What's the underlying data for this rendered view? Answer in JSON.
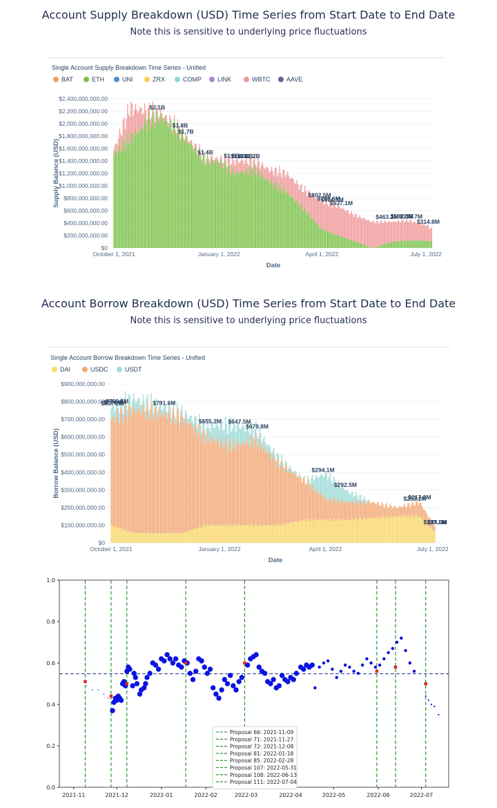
{
  "supply_section": {
    "title": "Account Supply Breakdown (USD) Time Series from Start Date to End Date",
    "subtitle": "Note this is sensitive to underlying price fluctuations"
  },
  "borrow_section": {
    "title": "Account Borrow Breakdown (USD) Time Series from Start Date to End Date",
    "subtitle": "Note this is sensitive to underlying price fluctuations"
  },
  "colors": {
    "BAT": "#ec9f6f",
    "ETH": "#7dc24a",
    "UNI": "#4a8fd6",
    "ZRX": "#f7cf5a",
    "COMP": "#8ed7d3",
    "LINK": "#a58ccb",
    "WBTC": "#ef9a9a",
    "AAVE": "#6f6198",
    "DAI": "#f9d86a",
    "USDC": "#f2a977",
    "USDT": "#9fdbd7"
  },
  "chart_data": [
    {
      "type": "bar",
      "stacked": true,
      "title": "Single Account Supply Breakdown Time Series - Unified",
      "xlabel": "Date",
      "ylabel": "Supply Balance (USD)",
      "legend": [
        "BAT",
        "ETH",
        "UNI",
        "ZRX",
        "COMP",
        "LINK",
        "WBTC",
        "AAVE"
      ],
      "legend_position": "top-left",
      "x_ticks": [
        "October 1, 2021",
        "January 1, 2022",
        "April 1, 2022",
        "July 1, 2022"
      ],
      "y_ticks": [
        "$0",
        "$200,000,000.00",
        "$400,000,000.00",
        "$600,000,000.00",
        "$800,000,000.00",
        "$1,000,000,000.00",
        "$1,200,000,000.00",
        "$1,400,000,000.00",
        "$1,600,000,000.00",
        "$1,800,000,000.00",
        "$2,000,000,000.00",
        "$2,200,000,000.00",
        "$2,400,000,000.00"
      ],
      "ylim": [
        0,
        2400000000
      ],
      "xlim": [
        "2021-09-28",
        "2022-07-10"
      ],
      "series": [
        {
          "name": "ETH",
          "x": [
            "2021-10-01",
            "2021-10-15",
            "2021-11-01",
            "2021-11-10",
            "2021-11-25",
            "2021-12-05",
            "2021-12-20",
            "2022-01-01",
            "2022-01-15",
            "2022-02-01",
            "2022-02-15",
            "2022-03-01",
            "2022-03-15",
            "2022-04-01",
            "2022-04-15",
            "2022-05-01",
            "2022-05-15",
            "2022-06-01",
            "2022-06-15",
            "2022-07-01",
            "2022-07-06"
          ],
          "values": [
            1500000000,
            1750000000,
            2050000000,
            2100000000,
            1900000000,
            1700000000,
            1400000000,
            1380000000,
            1200000000,
            1250000000,
            1050000000,
            900000000,
            650000000,
            300000000,
            200000000,
            100000000,
            0,
            100000000,
            120000000,
            120000000,
            100000000
          ]
        },
        {
          "name": "WBTC",
          "x": [
            "2021-10-01",
            "2021-10-15",
            "2021-11-01",
            "2021-11-10",
            "2021-11-25",
            "2021-12-05",
            "2021-12-20",
            "2022-01-01",
            "2022-01-15",
            "2022-02-01",
            "2022-02-15",
            "2022-03-01",
            "2022-03-15",
            "2022-04-01",
            "2022-04-15",
            "2022-05-01",
            "2022-05-15",
            "2022-06-01",
            "2022-06-15",
            "2022-07-01",
            "2022-07-06"
          ],
          "values": [
            80000000,
            500000000,
            150000000,
            80000000,
            60000000,
            50000000,
            60000000,
            50000000,
            200000000,
            150000000,
            200000000,
            300000000,
            300000000,
            450000000,
            470000000,
            420000000,
            420000000,
            320000000,
            320000000,
            250000000,
            210000000
          ]
        }
      ],
      "annotations": [
        {
          "x": "2021-11-08",
          "label": "$2.1B"
        },
        {
          "x": "2021-11-28",
          "label": "$1.8B"
        },
        {
          "x": "2021-12-03",
          "label": "$1.7B"
        },
        {
          "x": "2021-12-20",
          "label": "$1.4B"
        },
        {
          "x": "2022-01-12",
          "label": "$1.5B"
        },
        {
          "x": "2022-01-18",
          "label": "$1.4B"
        },
        {
          "x": "2022-01-24",
          "label": "$1.4B"
        },
        {
          "x": "2022-01-30",
          "label": "$1.2B"
        },
        {
          "x": "2022-03-30",
          "label": "$802.5M"
        },
        {
          "x": "2022-04-07",
          "label": "$796.6M"
        },
        {
          "x": "2022-04-10",
          "label": "$694.5M"
        },
        {
          "x": "2022-04-18",
          "label": "$537.1M"
        },
        {
          "x": "2022-05-28",
          "label": "$463.2M"
        },
        {
          "x": "2022-06-10",
          "label": "$562.3M"
        },
        {
          "x": "2022-06-18",
          "label": "$398.7M"
        },
        {
          "x": "2022-07-03",
          "label": "$314.8M"
        }
      ]
    },
    {
      "type": "bar",
      "stacked": true,
      "title": "Single Account Borrow Breakdown Time Series - Unified",
      "xlabel": "Date",
      "ylabel": "Borrow Balance (USD)",
      "legend": [
        "DAI",
        "USDC",
        "USDT"
      ],
      "legend_position": "top-left",
      "x_ticks": [
        "October 1, 2021",
        "January 1, 2022",
        "April 1, 2022",
        "July 1, 2022"
      ],
      "y_ticks": [
        "$0",
        "$100,000,000.00",
        "$200,000,000.00",
        "$300,000,000.00",
        "$400,000,000.00",
        "$500,000,000.00",
        "$600,000,000.00",
        "$700,000,000.00",
        "$800,000,000.00",
        "$900,000,000.00"
      ],
      "ylim": [
        0,
        900000000
      ],
      "xlim": [
        "2021-09-28",
        "2022-07-10"
      ],
      "series": [
        {
          "name": "DAI",
          "x": [
            "2021-10-01",
            "2021-10-20",
            "2021-11-10",
            "2021-12-01",
            "2021-12-20",
            "2022-01-10",
            "2022-02-01",
            "2022-02-20",
            "2022-03-15",
            "2022-04-01",
            "2022-04-20",
            "2022-05-10",
            "2022-06-01",
            "2022-06-20",
            "2022-07-03"
          ],
          "values": [
            100000000,
            55000000,
            55000000,
            55000000,
            100000000,
            100000000,
            100000000,
            100000000,
            130000000,
            130000000,
            130000000,
            140000000,
            150000000,
            150000000,
            60000000
          ]
        },
        {
          "name": "USDC",
          "x": [
            "2021-10-01",
            "2021-10-20",
            "2021-11-10",
            "2021-12-01",
            "2021-12-20",
            "2022-01-10",
            "2022-02-01",
            "2022-02-20",
            "2022-03-15",
            "2022-04-01",
            "2022-04-20",
            "2022-05-10",
            "2022-06-01",
            "2022-06-20",
            "2022-07-03"
          ],
          "values": [
            600000000,
            700000000,
            680000000,
            650000000,
            500000000,
            450000000,
            480000000,
            350000000,
            220000000,
            120000000,
            100000000,
            90000000,
            50000000,
            80000000,
            30000000
          ]
        },
        {
          "name": "USDT",
          "x": [
            "2021-10-01",
            "2021-10-20",
            "2021-11-10",
            "2021-12-01",
            "2021-12-20",
            "2022-01-10",
            "2022-02-01",
            "2022-02-20",
            "2022-03-15",
            "2022-04-01",
            "2022-04-20",
            "2022-05-10",
            "2022-06-01",
            "2022-06-20",
            "2022-07-03"
          ],
          "values": [
            60000000,
            60000000,
            40000000,
            30000000,
            60000000,
            120000000,
            60000000,
            30000000,
            0,
            140000000,
            60000000,
            0,
            0,
            0,
            0
          ]
        }
      ],
      "annotations": [
        {
          "x": "2021-10-02",
          "label": "$807.2M"
        },
        {
          "x": "2021-10-04",
          "label": "$774.0M"
        },
        {
          "x": "2021-10-06",
          "label": "$750.8M"
        },
        {
          "x": "2021-11-15",
          "label": "$791.6M"
        },
        {
          "x": "2021-12-24",
          "label": "$655.2M"
        },
        {
          "x": "2022-01-18",
          "label": "$647.5M"
        },
        {
          "x": "2022-02-02",
          "label": "$679.8M"
        },
        {
          "x": "2022-03-30",
          "label": "$294.1M"
        },
        {
          "x": "2022-04-18",
          "label": "$292.5M"
        },
        {
          "x": "2022-06-16",
          "label": "$253.2M"
        },
        {
          "x": "2022-06-20",
          "label": "$217.8M"
        },
        {
          "x": "2022-07-03",
          "label": "$137.1M"
        },
        {
          "x": "2022-07-05",
          "label": "$88.0M"
        }
      ]
    },
    {
      "type": "scatter",
      "x_ticks": [
        "2021-11",
        "2021-12",
        "2022-01",
        "2022-02",
        "2022-03",
        "2022-04",
        "2022-05",
        "2022-06",
        "2022-07"
      ],
      "y_ticks": [
        "0.0",
        "0.2",
        "0.4",
        "0.6",
        "0.8",
        "1.0"
      ],
      "ylim": [
        0,
        1.0
      ],
      "xlim": [
        "2021-10-22",
        "2022-07-20"
      ],
      "hline": 0.548,
      "points": [
        [
          "2021-11-10",
          0.49,
          1
        ],
        [
          "2021-11-14",
          0.47,
          1
        ],
        [
          "2021-11-18",
          0.47,
          1
        ],
        [
          "2021-11-22",
          0.45,
          1
        ],
        [
          "2021-11-25",
          0.43,
          1
        ],
        [
          "2021-11-28",
          0.37,
          5
        ],
        [
          "2021-11-29",
          0.41,
          5
        ],
        [
          "2021-11-30",
          0.43,
          5
        ],
        [
          "2021-12-01",
          0.42,
          5
        ],
        [
          "2021-12-02",
          0.44,
          5
        ],
        [
          "2021-12-03",
          0.43,
          5
        ],
        [
          "2021-12-04",
          0.42,
          5
        ],
        [
          "2021-12-05",
          0.5,
          5
        ],
        [
          "2021-12-06",
          0.51,
          5
        ],
        [
          "2021-12-07",
          0.49,
          5
        ],
        [
          "2021-12-08",
          0.56,
          5
        ],
        [
          "2021-12-09",
          0.58,
          5
        ],
        [
          "2021-12-10",
          0.57,
          5
        ],
        [
          "2021-12-12",
          0.49,
          5
        ],
        [
          "2021-12-13",
          0.55,
          5
        ],
        [
          "2021-12-14",
          0.53,
          5
        ],
        [
          "2021-12-15",
          0.5,
          5
        ],
        [
          "2021-12-17",
          0.45,
          5
        ],
        [
          "2021-12-18",
          0.47,
          5
        ],
        [
          "2021-12-20",
          0.48,
          5
        ],
        [
          "2021-12-21",
          0.5,
          5
        ],
        [
          "2021-12-22",
          0.53,
          5
        ],
        [
          "2021-12-24",
          0.55,
          5
        ],
        [
          "2021-12-26",
          0.6,
          5
        ],
        [
          "2021-12-28",
          0.59,
          5
        ],
        [
          "2021-12-30",
          0.57,
          5
        ],
        [
          "2022-01-01",
          0.62,
          5
        ],
        [
          "2022-01-03",
          0.61,
          5
        ],
        [
          "2022-01-05",
          0.64,
          5
        ],
        [
          "2022-01-07",
          0.62,
          5
        ],
        [
          "2022-01-09",
          0.6,
          5
        ],
        [
          "2022-01-11",
          0.62,
          5
        ],
        [
          "2022-01-13",
          0.59,
          5
        ],
        [
          "2022-01-15",
          0.58,
          5
        ],
        [
          "2022-01-17",
          0.61,
          5
        ],
        [
          "2022-01-19",
          0.6,
          5
        ],
        [
          "2022-01-21",
          0.55,
          5
        ],
        [
          "2022-01-23",
          0.52,
          5
        ],
        [
          "2022-01-25",
          0.56,
          5
        ],
        [
          "2022-01-27",
          0.62,
          5
        ],
        [
          "2022-01-29",
          0.61,
          5
        ],
        [
          "2022-01-31",
          0.58,
          5
        ],
        [
          "2022-02-02",
          0.55,
          5
        ],
        [
          "2022-02-04",
          0.57,
          5
        ],
        [
          "2022-02-06",
          0.48,
          5
        ],
        [
          "2022-02-08",
          0.45,
          5
        ],
        [
          "2022-02-10",
          0.43,
          5
        ],
        [
          "2022-02-12",
          0.47,
          5
        ],
        [
          "2022-02-14",
          0.52,
          5
        ],
        [
          "2022-02-16",
          0.5,
          5
        ],
        [
          "2022-02-18",
          0.54,
          5
        ],
        [
          "2022-02-20",
          0.49,
          5
        ],
        [
          "2022-02-22",
          0.47,
          5
        ],
        [
          "2022-02-24",
          0.51,
          5
        ],
        [
          "2022-02-26",
          0.53,
          5
        ],
        [
          "2022-03-02",
          0.59,
          5
        ],
        [
          "2022-03-04",
          0.62,
          5
        ],
        [
          "2022-03-06",
          0.63,
          5
        ],
        [
          "2022-03-08",
          0.64,
          5
        ],
        [
          "2022-03-10",
          0.58,
          5
        ],
        [
          "2022-03-12",
          0.56,
          5
        ],
        [
          "2022-03-14",
          0.55,
          5
        ],
        [
          "2022-03-16",
          0.51,
          5
        ],
        [
          "2022-03-18",
          0.5,
          5
        ],
        [
          "2022-03-20",
          0.52,
          5
        ],
        [
          "2022-03-22",
          0.48,
          5
        ],
        [
          "2022-03-24",
          0.49,
          5
        ],
        [
          "2022-03-26",
          0.54,
          5
        ],
        [
          "2022-03-28",
          0.52,
          5
        ],
        [
          "2022-03-30",
          0.51,
          5
        ],
        [
          "2022-04-01",
          0.53,
          5
        ],
        [
          "2022-04-03",
          0.52,
          5
        ],
        [
          "2022-04-05",
          0.55,
          5
        ],
        [
          "2022-04-08",
          0.58,
          5
        ],
        [
          "2022-04-10",
          0.57,
          5
        ],
        [
          "2022-04-12",
          0.59,
          5
        ],
        [
          "2022-04-14",
          0.58,
          5
        ],
        [
          "2022-04-16",
          0.59,
          5
        ],
        [
          "2022-04-18",
          0.48,
          3
        ],
        [
          "2022-04-21",
          0.58,
          3
        ],
        [
          "2022-04-24",
          0.6,
          3
        ],
        [
          "2022-04-27",
          0.61,
          3
        ],
        [
          "2022-04-30",
          0.57,
          3
        ],
        [
          "2022-05-03",
          0.53,
          3
        ],
        [
          "2022-05-06",
          0.56,
          3
        ],
        [
          "2022-05-09",
          0.59,
          3
        ],
        [
          "2022-05-12",
          0.58,
          3
        ],
        [
          "2022-05-15",
          0.56,
          3
        ],
        [
          "2022-05-18",
          0.55,
          3
        ],
        [
          "2022-05-21",
          0.59,
          3
        ],
        [
          "2022-05-24",
          0.62,
          3
        ],
        [
          "2022-05-27",
          0.6,
          3
        ],
        [
          "2022-05-30",
          0.58,
          3
        ],
        [
          "2022-06-02",
          0.59,
          3
        ],
        [
          "2022-06-05",
          0.62,
          3
        ],
        [
          "2022-06-08",
          0.65,
          3
        ],
        [
          "2022-06-11",
          0.67,
          3
        ],
        [
          "2022-06-14",
          0.7,
          3
        ],
        [
          "2022-06-17",
          0.72,
          3
        ],
        [
          "2022-06-20",
          0.66,
          3
        ],
        [
          "2022-06-23",
          0.6,
          3
        ],
        [
          "2022-06-26",
          0.56,
          3
        ],
        [
          "2022-07-04",
          0.44,
          1.5
        ],
        [
          "2022-07-06",
          0.42,
          1.5
        ],
        [
          "2022-07-08",
          0.4,
          1.5
        ],
        [
          "2022-07-10",
          0.39,
          1.5
        ],
        [
          "2022-07-13",
          0.35,
          1.5
        ]
      ],
      "markers": [
        [
          "2021-11-09",
          0.51
        ],
        [
          "2021-11-27",
          0.44
        ],
        [
          "2021-12-08",
          0.5
        ],
        [
          "2022-01-18",
          0.6
        ],
        [
          "2022-02-28",
          0.6
        ],
        [
          "2022-05-31",
          0.56
        ],
        [
          "2022-06-13",
          0.58
        ],
        [
          "2022-07-04",
          0.5
        ]
      ],
      "proposals": [
        {
          "date": "2021-11-09",
          "label": "Proposal 66: 2021-11-09"
        },
        {
          "date": "2021-11-27",
          "label": "Proposal 71: 2021-11-27"
        },
        {
          "date": "2021-12-08",
          "label": "Proposal 72: 2021-12-08"
        },
        {
          "date": "2022-01-18",
          "label": "Proposal 81: 2022-01-18"
        },
        {
          "date": "2022-02-28",
          "label": "Proposal 85: 2022-02-28"
        },
        {
          "date": "2022-05-31",
          "label": "Proposal 107: 2022-05-31"
        },
        {
          "date": "2022-06-13",
          "label": "Proposal 108: 2022-06-13"
        },
        {
          "date": "2022-07-04",
          "label": "Proposal 111: 2022-07-04"
        }
      ],
      "legend_position": "bottom-center"
    }
  ]
}
